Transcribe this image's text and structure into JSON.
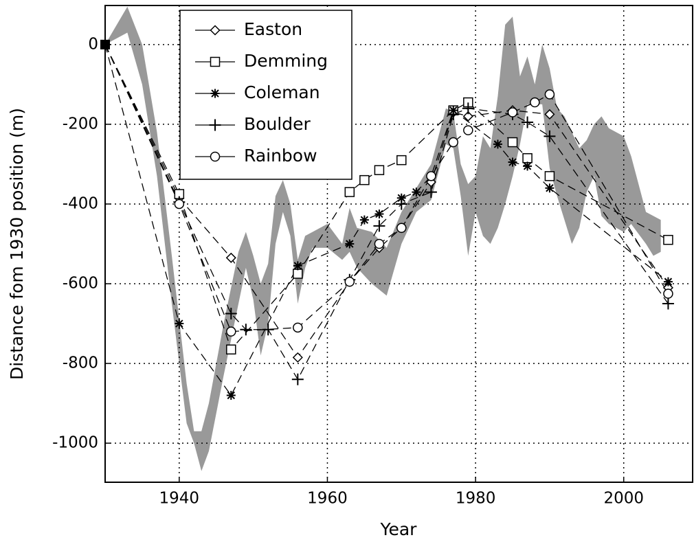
{
  "chart_data": {
    "type": "line",
    "xlabel": "Year",
    "ylabel": "Distance fom 1930 position (m)",
    "xlim": [
      1930,
      2009.3
    ],
    "ylim": [
      -1098,
      98
    ],
    "xticks": [
      1940,
      1960,
      1980,
      2000
    ],
    "yticks": [
      0,
      -200,
      -400,
      -600,
      -800,
      -1000
    ],
    "grid": true,
    "legend": "upper left",
    "band": {
      "color": "#999999",
      "x": [
        1930,
        1933,
        1935,
        1937,
        1939,
        1941,
        1942,
        1943,
        1944,
        1946,
        1948,
        1949,
        1950,
        1951,
        1952,
        1953,
        1954,
        1955,
        1956,
        1957,
        1958,
        1960,
        1962,
        1963,
        1964,
        1966,
        1968,
        1970,
        1972,
        1974,
        1976,
        1977,
        1978,
        1979,
        1980,
        1981,
        1982,
        1983,
        1984,
        1985,
        1986,
        1987,
        1988,
        1989,
        1990,
        1991,
        1992,
        1993,
        1994,
        1995,
        1996,
        1997,
        1998,
        2000,
        2001,
        2003,
        2004,
        2005
      ],
      "upper": [
        0,
        95,
        0,
        -220,
        -530,
        -850,
        -970,
        -970,
        -900,
        -700,
        -520,
        -470,
        -530,
        -600,
        -550,
        -380,
        -340,
        -400,
        -540,
        -480,
        -470,
        -450,
        -500,
        -410,
        -460,
        -470,
        -510,
        -420,
        -360,
        -300,
        -160,
        -170,
        -300,
        -350,
        -330,
        -230,
        -260,
        -130,
        50,
        70,
        -80,
        -30,
        -100,
        0,
        -60,
        -160,
        -180,
        -220,
        -260,
        -240,
        -200,
        -180,
        -210,
        -230,
        -280,
        -420,
        -430,
        -440
      ],
      "lower": [
        0,
        30,
        -100,
        -330,
        -650,
        -950,
        -1000,
        -1070,
        -1020,
        -830,
        -650,
        -560,
        -640,
        -780,
        -700,
        -500,
        -420,
        -480,
        -650,
        -560,
        -510,
        -510,
        -540,
        -520,
        -560,
        -600,
        -630,
        -500,
        -420,
        -390,
        -250,
        -260,
        -380,
        -530,
        -420,
        -480,
        -500,
        -460,
        -400,
        -330,
        -250,
        -150,
        -150,
        -150,
        -310,
        -380,
        -440,
        -500,
        -460,
        -370,
        -330,
        -430,
        -450,
        -470,
        -450,
        -500,
        -530,
        -520
      ]
    },
    "series": [
      {
        "name": "Easton",
        "marker": "diamond",
        "color": "#000000",
        "x": [
          1930,
          1940,
          1947,
          1956,
          1963,
          1967,
          1970,
          1974,
          1977,
          1979,
          1985,
          1990,
          2006
        ],
        "values": [
          0,
          -385,
          -535,
          -785,
          -595,
          -510,
          -460,
          -345,
          -170,
          -180,
          -165,
          -175,
          -610
        ]
      },
      {
        "name": "Demming",
        "marker": "square",
        "color": "#000000",
        "x": [
          1930,
          1940,
          1947,
          1956,
          1963,
          1965,
          1967,
          1970,
          1977,
          1979,
          1985,
          1987,
          1990,
          2006
        ],
        "values": [
          0,
          -375,
          -765,
          -575,
          -370,
          -340,
          -315,
          -290,
          -165,
          -145,
          -245,
          -285,
          -330,
          -490
        ]
      },
      {
        "name": "Coleman",
        "marker": "star",
        "color": "#000000",
        "x": [
          1930,
          1940,
          1947,
          1956,
          1963,
          1965,
          1967,
          1970,
          1972,
          1974,
          1977,
          1983,
          1985,
          1987,
          1990,
          2006
        ],
        "values": [
          0,
          -700,
          -880,
          -555,
          -500,
          -440,
          -425,
          -385,
          -370,
          -330,
          -165,
          -250,
          -295,
          -305,
          -360,
          -595
        ]
      },
      {
        "name": "Boulder",
        "marker": "plus",
        "color": "#000000",
        "x": [
          1930,
          1940,
          1947,
          1949,
          1952,
          1956,
          1963,
          1967,
          1970,
          1974,
          1977,
          1979,
          1985,
          1987,
          1990,
          2006
        ],
        "values": [
          0,
          -395,
          -675,
          -715,
          -715,
          -840,
          -590,
          -455,
          -400,
          -370,
          -175,
          -160,
          -175,
          -195,
          -230,
          -650
        ]
      },
      {
        "name": "Rainbow",
        "marker": "circle",
        "color": "#000000",
        "x": [
          1930,
          1940,
          1947,
          1956,
          1963,
          1967,
          1970,
          1974,
          1977,
          1979,
          1985,
          1988,
          1990,
          2006
        ],
        "values": [
          0,
          -400,
          -720,
          -710,
          -595,
          -500,
          -460,
          -330,
          -245,
          -215,
          -170,
          -145,
          -125,
          -625
        ]
      }
    ]
  }
}
